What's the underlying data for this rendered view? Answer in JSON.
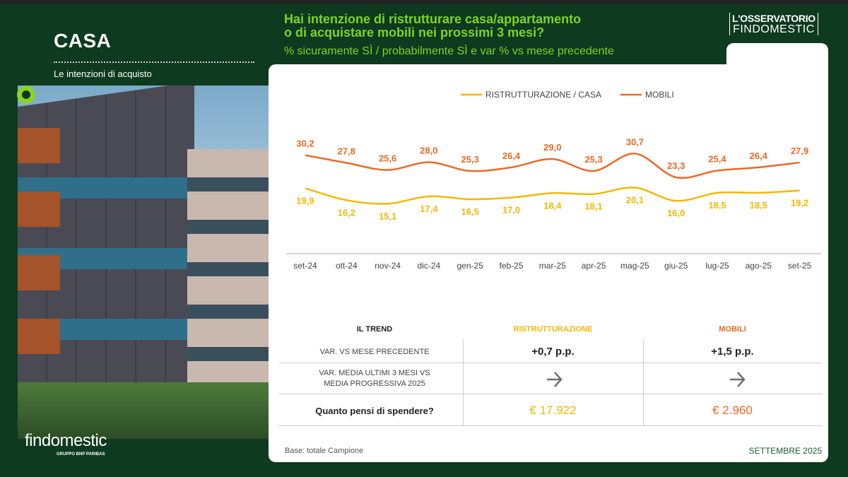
{
  "header": {
    "section": "CASA",
    "section_sub": "Le intenzioni di acquisto",
    "question_line1": "Hai intenzione di ristrutturare casa/appartamento",
    "question_line2": "o di acquistare mobili nei prossimi 3 mesi?",
    "metric": "% sicuramente SÌ / probabilmente SÌ e var % vs mese precedente",
    "brand_line1": "L'OSSERVATORIO",
    "brand_line2": "FINDOMESTIC"
  },
  "logo": {
    "name": "findomestic",
    "sub": "GRUPPO BNP PARIBAS"
  },
  "colors": {
    "bg": "#0e3a20",
    "accent": "#7ed321",
    "yellow": "#f5b800",
    "orange": "#ea6a24"
  },
  "chart_data": {
    "type": "line",
    "title": "Hai intenzione di ristrutturare casa/appartamento o di acquistare mobili nei prossimi 3 mesi?",
    "categories": [
      "set-24",
      "ott-24",
      "nov-24",
      "dic-24",
      "gen-25",
      "feb-25",
      "mar-25",
      "apr-25",
      "mag-25",
      "giu-25",
      "lug-25",
      "ago-25",
      "set-25"
    ],
    "series": [
      {
        "name": "RISTRUTTURAZIONE / CASA",
        "color": "#f5b800",
        "values": [
          19.9,
          16.2,
          15.1,
          17.4,
          16.5,
          17.0,
          18.4,
          18.1,
          20.1,
          16.0,
          18.5,
          18.5,
          19.2
        ],
        "labels": [
          "19,9",
          "16,2",
          "15,1",
          "17,4",
          "16,5",
          "17,0",
          "18,4",
          "18,1",
          "20,1",
          "16,0",
          "18,5",
          "18,5",
          "19,2"
        ]
      },
      {
        "name": "MOBILI",
        "color": "#ea6a24",
        "values": [
          30.2,
          27.8,
          25.6,
          28.0,
          25.3,
          26.4,
          29.0,
          25.3,
          30.7,
          23.3,
          25.4,
          26.4,
          27.9
        ],
        "labels": [
          "30,2",
          "27,8",
          "25,6",
          "28,0",
          "25,3",
          "26,4",
          "29,0",
          "25,3",
          "30,7",
          "23,3",
          "25,4",
          "26,4",
          "27,9"
        ]
      }
    ],
    "legend": "top-center",
    "grid": false,
    "xlabel": "",
    "ylabel": ""
  },
  "table": {
    "headers": [
      "IL TREND",
      "RISTRUTTURAZIONE",
      "MOBILI"
    ],
    "rows": [
      {
        "label": "VAR. VS MESE PRECEDENTE",
        "r": "+0,7 p.p.",
        "m": "+1,5 p.p."
      },
      {
        "label1": "VAR.  MEDIA ULTIMI 3 MESI VS",
        "label2": "MEDIA PROGRESSIVA  2025",
        "r_icon": "arrow-right",
        "m_icon": "arrow-right"
      },
      {
        "label": "Quanto pensi di spendere?",
        "r": "€ 17.922",
        "m": "€ 2.960"
      }
    ]
  },
  "footer": {
    "base": "Base: totale Campione",
    "date": "SETTEMBRE 2025"
  }
}
